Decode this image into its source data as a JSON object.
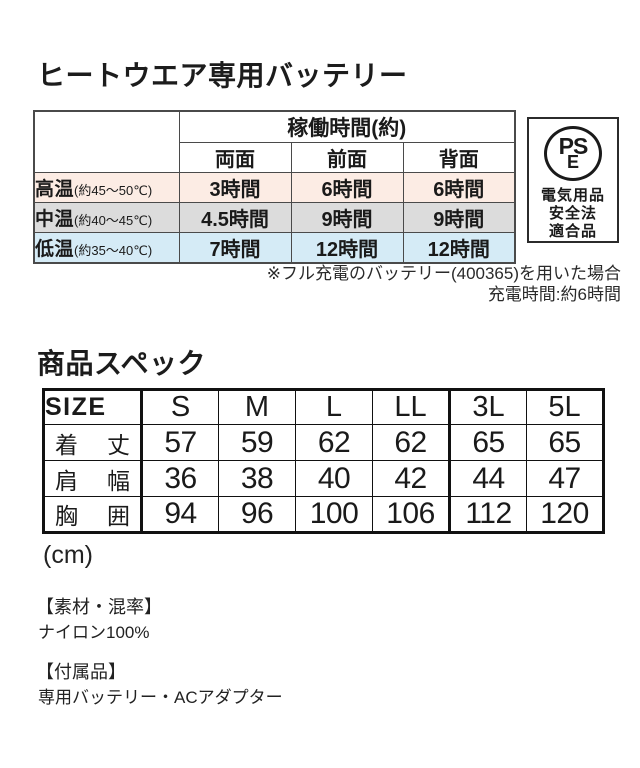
{
  "battery": {
    "title": "ヒートウエア専用バッテリー",
    "table": {
      "group_header": "稼働時間(約)",
      "columns": [
        "両面",
        "前面",
        "背面"
      ],
      "rows": [
        {
          "label": "高温",
          "range": "(約45〜50℃)",
          "values": [
            "3時間",
            "6時間",
            "6時間"
          ],
          "color": "#fcece4"
        },
        {
          "label": "中温",
          "range": "(約40〜45℃)",
          "values": [
            "4.5時間",
            "9時間",
            "9時間"
          ],
          "color": "#dcdcdc"
        },
        {
          "label": "低温",
          "range": "(約35〜40℃)",
          "values": [
            "7時間",
            "12時間",
            "12時間"
          ],
          "color": "#d5ebf6"
        }
      ]
    },
    "pse": {
      "mark_top": "PS",
      "mark_bottom": "E",
      "lines": [
        "電気用品",
        "安全法",
        "適合品"
      ]
    },
    "notes": {
      "line1": "※フル充電のバッテリー(400365)を用いた場合",
      "line2": "充電時間:約6時間"
    }
  },
  "spec": {
    "title": "商品スペック",
    "size_table": {
      "corner_label": "SIZE",
      "sizes": [
        "S",
        "M",
        "L",
        "LL",
        "3L",
        "5L"
      ],
      "rows": [
        {
          "label_left": "着",
          "label_right": "丈",
          "values": [
            "57",
            "59",
            "62",
            "62",
            "65",
            "65"
          ]
        },
        {
          "label_left": "肩",
          "label_right": "幅",
          "values": [
            "36",
            "38",
            "40",
            "42",
            "44",
            "47"
          ]
        },
        {
          "label_left": "胸",
          "label_right": "囲",
          "values": [
            "94",
            "96",
            "100",
            "106",
            "112",
            "120"
          ]
        }
      ]
    },
    "unit": "(cm)",
    "material": {
      "heading": "【素材・混率】",
      "value": "ナイロン100%"
    },
    "accessories": {
      "heading": "【付属品】",
      "value": "専用バッテリー・ACアダプター"
    }
  }
}
